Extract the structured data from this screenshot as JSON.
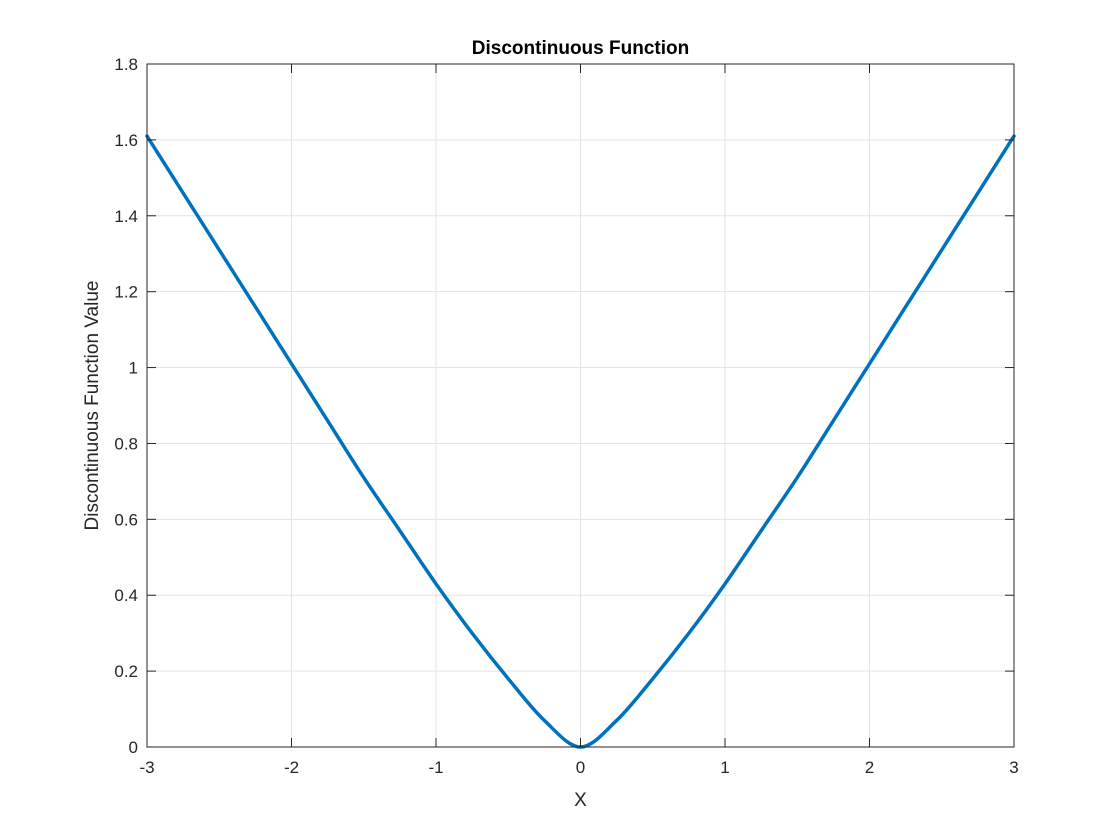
{
  "chart_data": {
    "type": "line",
    "title": "Discontinuous Function",
    "xlabel": "X",
    "ylabel": "Discontinuous Function Value",
    "xlim": [
      -3,
      3
    ],
    "ylim": [
      0,
      1.8
    ],
    "xticks": [
      -3,
      -2,
      -1,
      0,
      1,
      2,
      3
    ],
    "yticks": [
      0,
      0.2,
      0.4,
      0.6,
      0.8,
      1,
      1.2,
      1.4,
      1.6,
      1.8
    ],
    "xtick_labels": [
      "-3",
      "-2",
      "-1",
      "0",
      "1",
      "2",
      "3"
    ],
    "ytick_labels": [
      "0",
      "0.2",
      "0.4",
      "0.6",
      "0.8",
      "1",
      "1.2",
      "1.4",
      "1.6",
      "1.8"
    ],
    "grid": true,
    "legend": "none",
    "series": [
      {
        "color": "#0072BD",
        "x": [
          -3,
          -2.75,
          -2.5,
          -2.25,
          -2,
          -1.75,
          -1.5,
          -1.25,
          -1,
          -0.75,
          -0.5,
          -0.25,
          0,
          0.25,
          0.5,
          0.75,
          1,
          1.25,
          1.5,
          1.75,
          2,
          2.25,
          2.5,
          2.75,
          3
        ],
        "y": [
          1.61,
          1.46,
          1.31,
          1.16,
          1.01,
          0.86,
          0.71,
          0.57,
          0.43,
          0.3,
          0.18,
          0.07,
          0,
          0.07,
          0.18,
          0.3,
          0.43,
          0.57,
          0.71,
          0.86,
          1.01,
          1.16,
          1.31,
          1.46,
          1.61
        ]
      }
    ]
  }
}
